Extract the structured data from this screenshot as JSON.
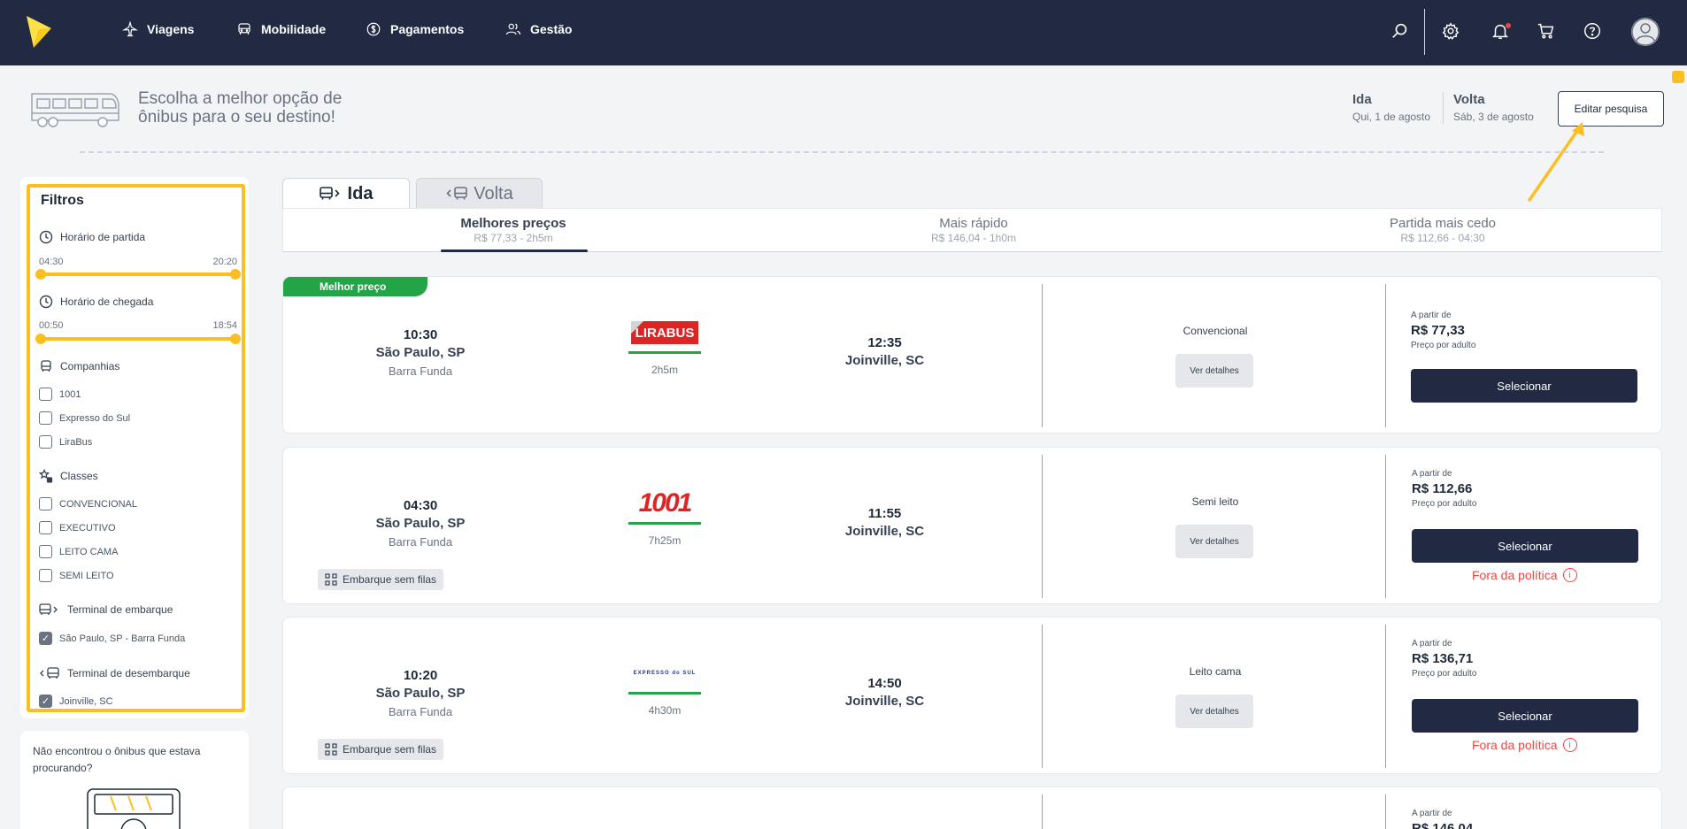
{
  "nav": {
    "items": [
      {
        "label": "Viagens",
        "icon": "plane-icon"
      },
      {
        "label": "Mobilidade",
        "icon": "car-icon"
      },
      {
        "label": "Pagamentos",
        "icon": "dollar-icon"
      },
      {
        "label": "Gestão",
        "icon": "users-icon"
      }
    ],
    "colors": {
      "bar": "#212a42",
      "accent": "#fbbf24"
    }
  },
  "header": {
    "hero": "Escolha a melhor opção de ônibus para o seu destino!",
    "ida_label": "Ida",
    "ida_date": "Qui, 1 de agosto",
    "volta_label": "Volta",
    "volta_date": "Sáb, 3 de agosto",
    "edit_label": "Editar pesquisa"
  },
  "filters": {
    "title": "Filtros",
    "departure": {
      "label": "Horário de partida",
      "min": "04:30",
      "max": "20:20"
    },
    "arrival": {
      "label": "Horário de chegada",
      "min": "00:50",
      "max": "18:54"
    },
    "companies": {
      "label": "Companhias",
      "options": [
        "1001",
        "Expresso do Sul",
        "LiraBus"
      ]
    },
    "classes": {
      "label": "Classes",
      "options": [
        "CONVENCIONAL",
        "EXECUTIVO",
        "LEITO CAMA",
        "SEMI LEITO"
      ]
    },
    "boarding": {
      "label": "Terminal de embarque",
      "option": "São Paulo, SP - Barra Funda",
      "checked": true
    },
    "landing": {
      "label": "Terminal de desembarque",
      "option": "Joinville, SC",
      "checked": true
    }
  },
  "help": {
    "text": "Não encontrou o ônibus que estava procurando?"
  },
  "tabs": {
    "ida": "Ida",
    "volta": "Volta"
  },
  "sort": [
    {
      "title": "Melhores preços",
      "sub": "R$ 77,33 - 2h5m",
      "active": true
    },
    {
      "title": "Mais rápido",
      "sub": "R$ 146,04 - 1h0m",
      "active": false
    },
    {
      "title": "Partida mais cedo",
      "sub": "R$ 112,66 - 04:30",
      "active": false
    }
  ],
  "results": [
    {
      "badge": "Melhor preço",
      "dep_time": "10:30",
      "dep_city": "São Paulo, SP",
      "dep_terminal": "Barra Funda",
      "company": "LIRABUS",
      "duration": "2h5m",
      "arr_time": "12:35",
      "arr_city": "Joinville, SC",
      "class": "Convencional",
      "details": "Ver detalhes",
      "from": "A partir de",
      "price": "R$ 77,33",
      "per": "Preço por adulto",
      "select": "Selecionar"
    },
    {
      "dep_time": "04:30",
      "dep_city": "São Paulo, SP",
      "dep_terminal": "Barra Funda",
      "company": "1001",
      "duration": "7h25m",
      "arr_time": "11:55",
      "arr_city": "Joinville, SC",
      "class": "Semi leito",
      "details": "Ver detalhes",
      "from": "A partir de",
      "price": "R$ 112,66",
      "per": "Preço por adulto",
      "select": "Selecionar",
      "policy": "Fora da política",
      "chip": "Embarque sem filas"
    },
    {
      "dep_time": "10:20",
      "dep_city": "São Paulo, SP",
      "dep_terminal": "Barra Funda",
      "company": "EXPRESSO do SUL",
      "duration": "4h30m",
      "arr_time": "14:50",
      "arr_city": "Joinville, SC",
      "class": "Leito cama",
      "details": "Ver detalhes",
      "from": "A partir de",
      "price": "R$ 136,71",
      "per": "Preço por adulto",
      "select": "Selecionar",
      "policy": "Fora da política",
      "chip": "Embarque sem filas"
    },
    {
      "from": "A partir de",
      "price": "R$ 146,04"
    }
  ]
}
